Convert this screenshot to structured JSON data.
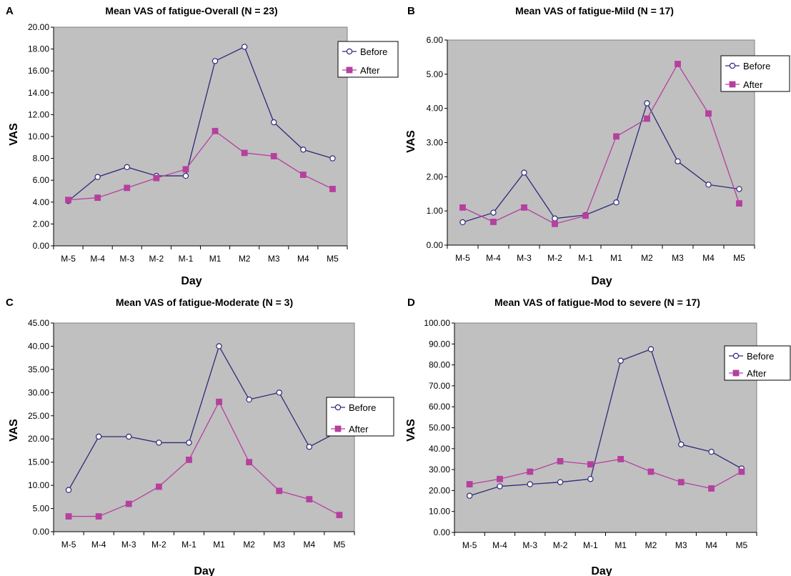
{
  "colors": {
    "before": "#2e2a7a",
    "after": "#b5409f",
    "plot_bg": "#c0c0c0"
  },
  "chart_data": [
    {
      "panel": "A",
      "type": "line",
      "title": "Mean VAS of fatigue-Overall (N = 23)",
      "xlabel": "Day",
      "ylabel": "VAS",
      "categories": [
        "M-5",
        "M-4",
        "M-3",
        "M-2",
        "M-1",
        "M1",
        "M2",
        "M3",
        "M4",
        "M5"
      ],
      "yticks": [
        "0.00",
        "2.00",
        "4.00",
        "6.00",
        "8.00",
        "10.00",
        "12.00",
        "14.00",
        "16.00",
        "18.00",
        "20.00"
      ],
      "ylim": [
        0,
        20
      ],
      "legend": "right-top",
      "series": [
        {
          "name": "Before",
          "marker": "circle",
          "values": [
            4.1,
            6.3,
            7.2,
            6.4,
            6.4,
            16.9,
            18.2,
            11.3,
            8.8,
            8.0
          ]
        },
        {
          "name": "After",
          "marker": "square",
          "values": [
            4.2,
            4.4,
            5.3,
            6.2,
            7.0,
            10.5,
            8.5,
            8.2,
            6.5,
            5.2
          ]
        }
      ]
    },
    {
      "panel": "B",
      "type": "line",
      "title": "Mean VAS of fatigue-Mild (N = 17)",
      "xlabel": "Day",
      "ylabel": "VAS",
      "categories": [
        "M-5",
        "M-4",
        "M-3",
        "M-2",
        "M-1",
        "M1",
        "M2",
        "M3",
        "M4",
        "M5"
      ],
      "yticks": [
        "0.00",
        "1.00",
        "2.00",
        "3.00",
        "4.00",
        "5.00",
        "6.00"
      ],
      "ylim": [
        0,
        6
      ],
      "legend": "right-top",
      "series": [
        {
          "name": "Before",
          "marker": "circle",
          "values": [
            0.67,
            0.95,
            2.12,
            0.78,
            0.88,
            1.25,
            4.15,
            2.45,
            1.77,
            1.64
          ]
        },
        {
          "name": "After",
          "marker": "square",
          "values": [
            1.1,
            0.68,
            1.1,
            0.62,
            0.86,
            3.18,
            3.7,
            5.3,
            3.85,
            1.22
          ]
        }
      ]
    },
    {
      "panel": "C",
      "type": "line",
      "title": "Mean VAS of fatigue-Moderate (N = 3)",
      "xlabel": "Day",
      "ylabel": "VAS",
      "categories": [
        "M-5",
        "M-4",
        "M-3",
        "M-2",
        "M-1",
        "M1",
        "M2",
        "M3",
        "M4",
        "M5"
      ],
      "yticks": [
        "0.00",
        "5.00",
        "10.00",
        "15.00",
        "20.00",
        "25.00",
        "30.00",
        "35.00",
        "40.00",
        "45.00"
      ],
      "ylim": [
        0,
        45
      ],
      "legend": "right-middle",
      "series": [
        {
          "name": "Before",
          "marker": "circle",
          "values": [
            9.0,
            20.5,
            20.5,
            19.2,
            19.2,
            40.0,
            28.5,
            30.0,
            18.3,
            21.7
          ]
        },
        {
          "name": "After",
          "marker": "square",
          "values": [
            3.3,
            3.3,
            6.0,
            9.7,
            15.5,
            28.0,
            15.0,
            8.8,
            7.0,
            3.6
          ]
        }
      ]
    },
    {
      "panel": "D",
      "type": "line",
      "title": "Mean VAS of fatigue-Mod to severe (N = 17)",
      "xlabel": "Day",
      "ylabel": "VAS",
      "categories": [
        "M-5",
        "M-4",
        "M-3",
        "M-2",
        "M-1",
        "M1",
        "M2",
        "M3",
        "M4",
        "M5"
      ],
      "yticks": [
        "0.00",
        "10.00",
        "20.00",
        "30.00",
        "40.00",
        "50.00",
        "60.00",
        "70.00",
        "80.00",
        "90.00",
        "100.00"
      ],
      "ylim": [
        0,
        100
      ],
      "legend": "right-top",
      "series": [
        {
          "name": "Before",
          "marker": "circle",
          "values": [
            17.5,
            22.0,
            23.0,
            24.0,
            25.5,
            82.0,
            87.5,
            42.0,
            38.5,
            30.5
          ]
        },
        {
          "name": "After",
          "marker": "square",
          "values": [
            23.0,
            25.5,
            29.0,
            34.0,
            32.5,
            35.0,
            29.0,
            24.0,
            21.0,
            29.0
          ]
        }
      ]
    }
  ]
}
